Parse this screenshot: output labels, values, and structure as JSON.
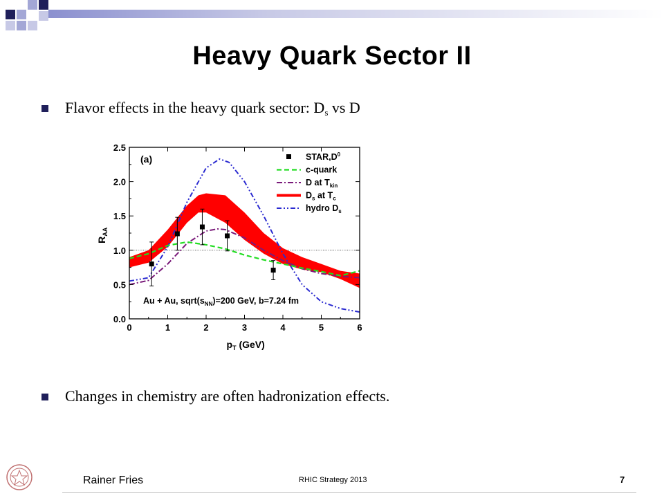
{
  "slide": {
    "title": "Heavy Quark Sector II",
    "bullet1": {
      "text": "Flavor effects in the heavy quark sector: D",
      "sub": "s",
      "tail": " vs D"
    },
    "bullet2": "Changes in chemistry are often hadronization effects.",
    "footer": {
      "author": "Rainer Fries",
      "center": "RHIC Strategy 2013",
      "page": "7"
    }
  },
  "colors": {
    "accent_dark": "#1f1f5a",
    "accent_light": "#a3a7d6",
    "band": "#ff0000",
    "green": "#22dd22",
    "purple": "#7a1a7a",
    "blue": "#2a2ad0"
  },
  "chart_data": {
    "type": "line",
    "panel_label": "(a)",
    "xlabel": "p",
    "xlabel_sub": "T",
    "xlabel_unit": " (GeV)",
    "ylabel": "R",
    "ylabel_sub": "AA",
    "xlim": [
      0,
      6
    ],
    "ylim": [
      0,
      2.5
    ],
    "xticks": [
      0,
      1,
      2,
      3,
      4,
      5,
      6
    ],
    "yticks": [
      "0.0",
      "0.5",
      "1.0",
      "1.5",
      "2.0",
      "2.5"
    ],
    "annotation": "Au + Au, sqrt(s",
    "annotation_sub": "NN",
    "annotation_tail": ")=200 GeV, b=7.24 fm",
    "reference_line": 1.0,
    "legend": [
      {
        "label": "STAR,D",
        "sup": "0",
        "sub": ""
      },
      {
        "label": "c-quark",
        "sup": "",
        "sub": ""
      },
      {
        "label": "D at T",
        "sup": "",
        "sub": "kin"
      },
      {
        "label": "D",
        "sup": "",
        "sub": "s",
        "tail": " at T",
        "sub2": "c"
      },
      {
        "label": "hydro D",
        "sup": "",
        "sub": "s"
      }
    ],
    "series": [
      {
        "name": "STAR,D0",
        "kind": "points",
        "x": [
          0.58,
          1.25,
          1.9,
          2.55,
          3.75
        ],
        "y": [
          0.8,
          1.24,
          1.34,
          1.21,
          0.71
        ],
        "err": [
          0.32,
          0.24,
          0.26,
          0.22,
          0.14
        ]
      },
      {
        "name": "c-quark",
        "kind": "dashed",
        "x": [
          0,
          0.5,
          1.0,
          1.5,
          2.0,
          2.5,
          3.0,
          3.5,
          4.0,
          4.5,
          5.0,
          5.5,
          6.0
        ],
        "y": [
          0.88,
          0.95,
          1.07,
          1.12,
          1.08,
          1.02,
          0.93,
          0.86,
          0.8,
          0.74,
          0.69,
          0.63,
          0.7
        ]
      },
      {
        "name": "D at Tkin",
        "kind": "dashdot",
        "x": [
          0,
          0.5,
          1.0,
          1.5,
          2.0,
          2.3,
          2.5,
          3.0,
          3.5,
          4.0,
          4.5,
          5.0,
          5.5,
          6.0
        ],
        "y": [
          0.5,
          0.56,
          0.8,
          1.1,
          1.28,
          1.31,
          1.3,
          1.18,
          1.0,
          0.85,
          0.73,
          0.66,
          0.62,
          0.6
        ]
      },
      {
        "name": "Ds at Tc",
        "kind": "band",
        "x": [
          0,
          0.5,
          1.0,
          1.5,
          1.8,
          2.0,
          2.5,
          3.0,
          3.5,
          4.0,
          4.5,
          5.0,
          5.5,
          6.0
        ],
        "low": [
          0.75,
          0.82,
          1.05,
          1.4,
          1.55,
          1.55,
          1.4,
          1.15,
          0.95,
          0.8,
          0.72,
          0.68,
          0.58,
          0.45
        ],
        "high": [
          0.9,
          1.0,
          1.3,
          1.65,
          1.8,
          1.83,
          1.8,
          1.55,
          1.25,
          1.03,
          0.9,
          0.8,
          0.7,
          0.66
        ]
      },
      {
        "name": "hydro Ds",
        "kind": "dashdotdot",
        "x": [
          0,
          0.5,
          1.0,
          1.5,
          2.0,
          2.35,
          2.6,
          3.0,
          3.5,
          4.0,
          4.5,
          5.0,
          5.5,
          6.0
        ],
        "y": [
          0.55,
          0.6,
          1.05,
          1.7,
          2.2,
          2.33,
          2.28,
          2.0,
          1.5,
          0.95,
          0.5,
          0.25,
          0.15,
          0.1
        ]
      }
    ]
  }
}
